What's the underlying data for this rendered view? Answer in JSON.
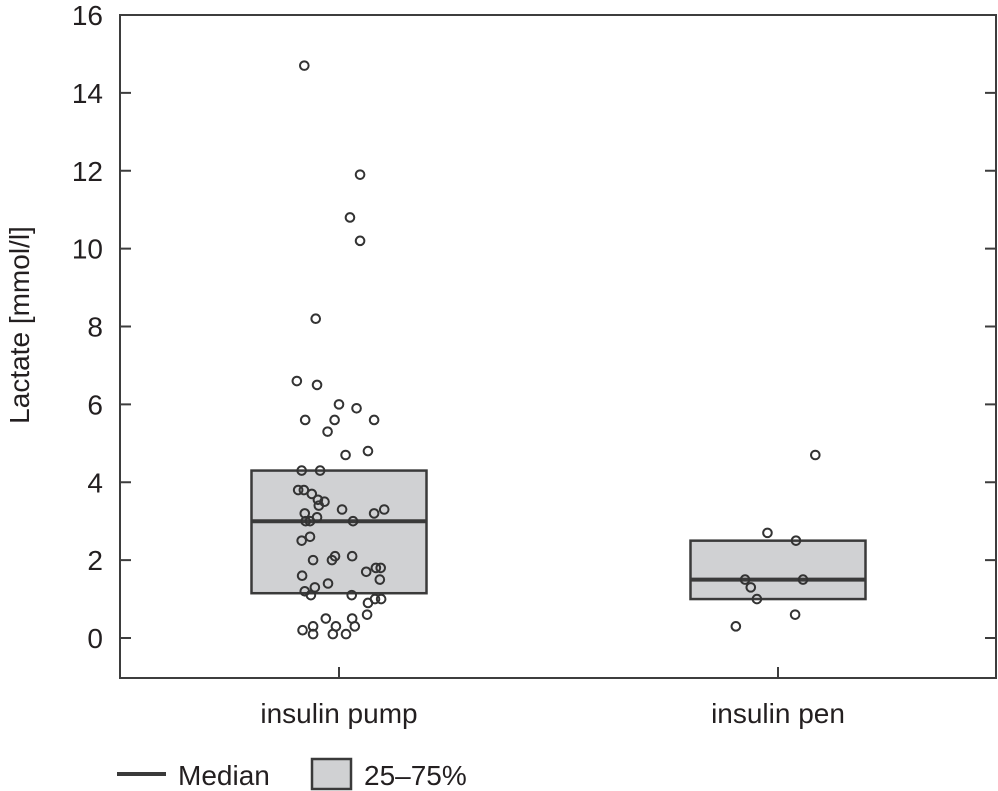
{
  "chart_data": {
    "type": "box-strip",
    "title": "",
    "xlabel": "",
    "ylabel": "Lactate [mmol/l]",
    "ylim": [
      -1,
      16
    ],
    "yticks": [
      0,
      2,
      4,
      6,
      8,
      10,
      12,
      14,
      16
    ],
    "ytick_labels": [
      "0",
      "2",
      "4",
      "6",
      "8",
      "10",
      "12",
      "14",
      "16"
    ],
    "categories": [
      "insulin pump",
      "insulin pen"
    ],
    "grid": false,
    "legend": {
      "placement": "bottom-left",
      "entries": [
        {
          "type": "line",
          "label": "Median"
        },
        {
          "type": "box",
          "label": "25–75%"
        }
      ]
    },
    "colors": {
      "box_fill": "#d0d1d3",
      "box_stroke": "#3a3a3a",
      "median": "#3a3a3a",
      "points": "#333333"
    },
    "series": [
      {
        "name": "insulin pump",
        "q1": 1.15,
        "median": 3.0,
        "q3": 4.3,
        "points": [
          {
            "value": 14.7,
            "jitter": -0.079
          },
          {
            "value": 11.9,
            "jitter": 0.048
          },
          {
            "value": 10.8,
            "jitter": 0.025
          },
          {
            "value": 10.2,
            "jitter": 0.048
          },
          {
            "value": 8.2,
            "jitter": -0.053
          },
          {
            "value": 6.6,
            "jitter": -0.096
          },
          {
            "value": 6.5,
            "jitter": -0.05
          },
          {
            "value": 6.0,
            "jitter": 0.0
          },
          {
            "value": 5.9,
            "jitter": 0.04
          },
          {
            "value": 5.6,
            "jitter": -0.077
          },
          {
            "value": 5.6,
            "jitter": -0.01
          },
          {
            "value": 5.6,
            "jitter": 0.08
          },
          {
            "value": 5.3,
            "jitter": -0.026
          },
          {
            "value": 4.8,
            "jitter": 0.066
          },
          {
            "value": 4.7,
            "jitter": 0.015
          },
          {
            "value": 4.3,
            "jitter": -0.085
          },
          {
            "value": 4.3,
            "jitter": -0.043
          },
          {
            "value": 3.8,
            "jitter": -0.093
          },
          {
            "value": 3.8,
            "jitter": -0.08
          },
          {
            "value": 3.7,
            "jitter": -0.062
          },
          {
            "value": 3.55,
            "jitter": -0.048
          },
          {
            "value": 3.5,
            "jitter": -0.033
          },
          {
            "value": 3.4,
            "jitter": -0.046
          },
          {
            "value": 3.3,
            "jitter": 0.007
          },
          {
            "value": 3.3,
            "jitter": 0.103
          },
          {
            "value": 3.2,
            "jitter": 0.08
          },
          {
            "value": 3.2,
            "jitter": -0.078
          },
          {
            "value": 3.1,
            "jitter": -0.05
          },
          {
            "value": 3.0,
            "jitter": 0.032
          },
          {
            "value": 3.0,
            "jitter": -0.076
          },
          {
            "value": 3.0,
            "jitter": -0.066
          },
          {
            "value": 2.6,
            "jitter": -0.066
          },
          {
            "value": 2.5,
            "jitter": -0.085
          },
          {
            "value": 2.1,
            "jitter": -0.009
          },
          {
            "value": 2.1,
            "jitter": 0.03
          },
          {
            "value": 2.0,
            "jitter": -0.059
          },
          {
            "value": 2.0,
            "jitter": -0.016
          },
          {
            "value": 1.8,
            "jitter": 0.084
          },
          {
            "value": 1.8,
            "jitter": 0.095
          },
          {
            "value": 1.7,
            "jitter": 0.062
          },
          {
            "value": 1.6,
            "jitter": -0.084
          },
          {
            "value": 1.5,
            "jitter": 0.093
          },
          {
            "value": 1.4,
            "jitter": -0.025
          },
          {
            "value": 1.3,
            "jitter": -0.055
          },
          {
            "value": 1.2,
            "jitter": -0.078
          },
          {
            "value": 1.1,
            "jitter": -0.064
          },
          {
            "value": 1.1,
            "jitter": 0.029
          },
          {
            "value": 1.0,
            "jitter": 0.082
          },
          {
            "value": 1.0,
            "jitter": 0.096
          },
          {
            "value": 0.9,
            "jitter": 0.066
          },
          {
            "value": 0.6,
            "jitter": 0.064
          },
          {
            "value": 0.5,
            "jitter": -0.03
          },
          {
            "value": 0.5,
            "jitter": 0.03
          },
          {
            "value": 0.3,
            "jitter": -0.059
          },
          {
            "value": 0.3,
            "jitter": -0.007
          },
          {
            "value": 0.3,
            "jitter": 0.036
          },
          {
            "value": 0.2,
            "jitter": -0.083
          },
          {
            "value": 0.1,
            "jitter": -0.059
          },
          {
            "value": 0.1,
            "jitter": -0.014
          },
          {
            "value": 0.1,
            "jitter": 0.016
          }
        ]
      },
      {
        "name": "insulin pen",
        "q1": 1.0,
        "median": 1.5,
        "q3": 2.5,
        "points": [
          {
            "value": 4.7,
            "jitter": 0.085
          },
          {
            "value": 2.7,
            "jitter": -0.024
          },
          {
            "value": 2.5,
            "jitter": 0.041
          },
          {
            "value": 1.5,
            "jitter": -0.075
          },
          {
            "value": 1.5,
            "jitter": 0.057
          },
          {
            "value": 1.3,
            "jitter": -0.062
          },
          {
            "value": 1.0,
            "jitter": -0.048
          },
          {
            "value": 0.6,
            "jitter": 0.039
          },
          {
            "value": 0.3,
            "jitter": -0.096
          }
        ]
      }
    ]
  }
}
